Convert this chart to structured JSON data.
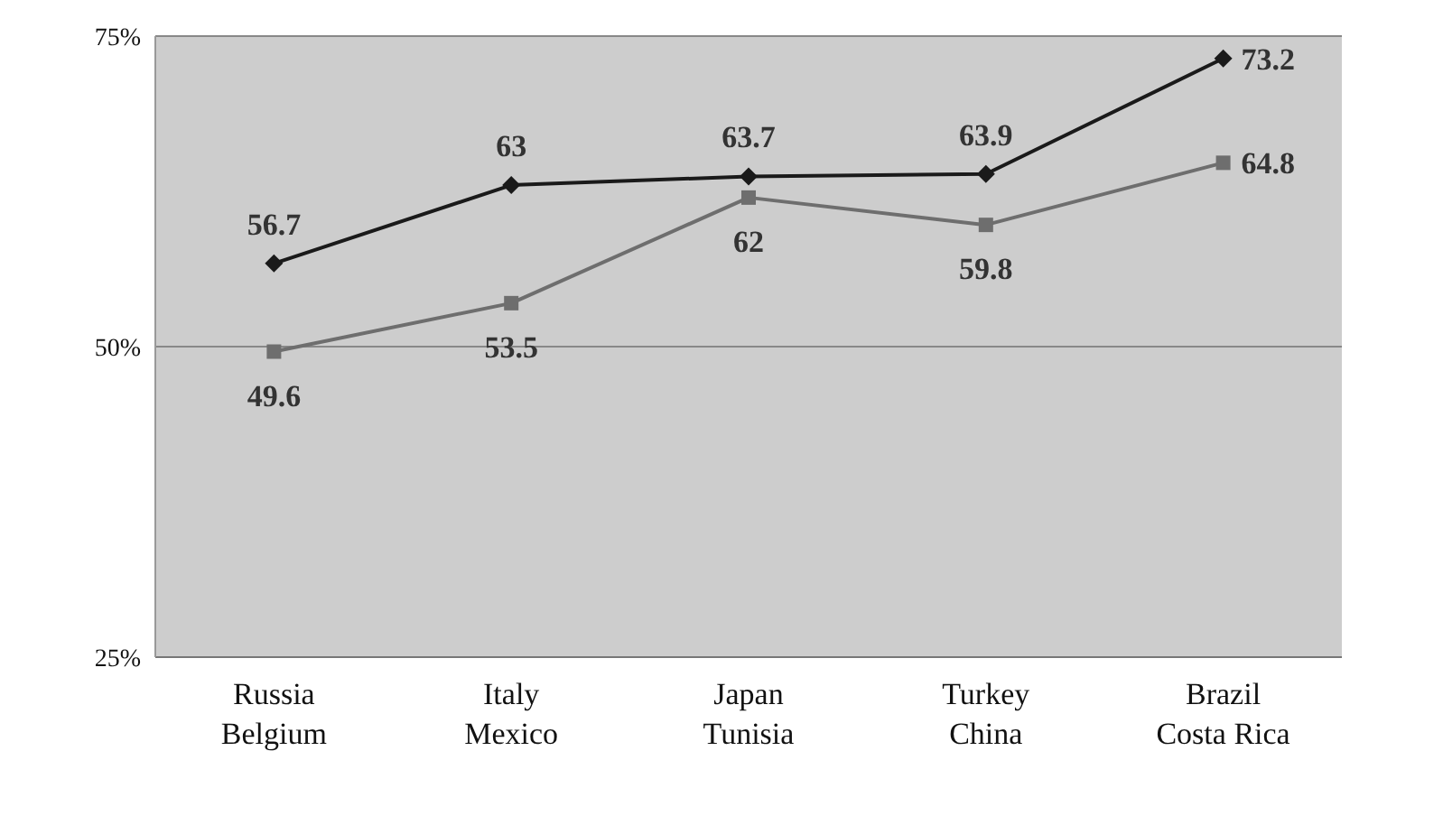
{
  "chart_data": {
    "type": "line",
    "categories": [
      "Russia\nBelgium",
      "Italy\nMexico",
      "Japan\nTunisia",
      "Turkey\nChina",
      "Brazil\nCosta Rica"
    ],
    "series": [
      {
        "color": "#1a1a1a",
        "marker": "diamond",
        "values": [
          56.7,
          63,
          63.7,
          63.9,
          73.2
        ]
      },
      {
        "color": "#6e6e6e",
        "marker": "square",
        "values": [
          49.6,
          53.5,
          62,
          59.8,
          64.8
        ]
      }
    ],
    "ylim": [
      25,
      75
    ],
    "yticks": [
      {
        "value": 25,
        "label": "25%"
      },
      {
        "value": 50,
        "label": "50%"
      },
      {
        "value": 75,
        "label": "75%"
      }
    ],
    "grid": "y",
    "data_labels": true,
    "legend": false
  }
}
